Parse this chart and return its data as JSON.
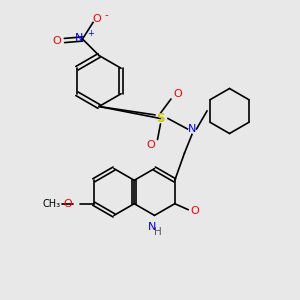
{
  "bg_color": "#e8e8e8",
  "bond_color": "#000000",
  "colors": {
    "N": "#0000FF",
    "O": "#FF0000",
    "S": "#CCCC00",
    "C": "#000000"
  },
  "font_size": 7.5,
  "lw": 1.2
}
